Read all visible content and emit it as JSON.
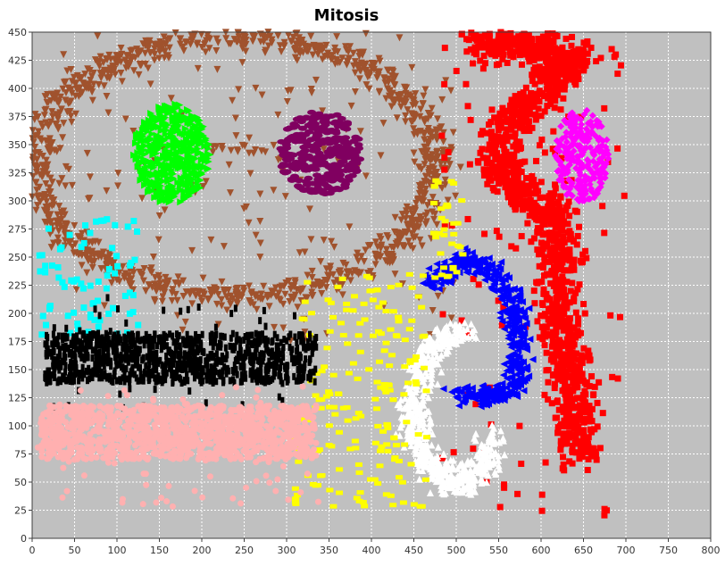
{
  "chart_data": {
    "type": "scatter",
    "title": "Mitosis",
    "xlabel": "",
    "ylabel": "",
    "xlim": [
      0,
      800
    ],
    "ylim": [
      0,
      450
    ],
    "xticks": [
      0,
      50,
      100,
      150,
      200,
      250,
      300,
      350,
      400,
      450,
      500,
      550,
      600,
      650,
      700,
      750,
      800
    ],
    "yticks": [
      0,
      25,
      50,
      75,
      100,
      125,
      150,
      175,
      200,
      225,
      250,
      275,
      300,
      325,
      350,
      375,
      400,
      425,
      450
    ],
    "grid": true,
    "legend": "none",
    "background_color": "#c0c0c0",
    "series": [
      {
        "color": "#a0522d",
        "marker": "triangle-down",
        "description": "large elliptical ring",
        "clusters": [
          {
            "shape": "ring",
            "cx": 240,
            "cy": 330,
            "rx": 235,
            "ry": 115,
            "thickness": 35,
            "count": 1100
          },
          {
            "shape": "scatter-fill",
            "x": [
              10,
              500
            ],
            "y": [
              170,
              450
            ],
            "count": 180
          },
          {
            "shape": "dash",
            "x": [
              200,
              290
            ],
            "y": [
              342,
              350
            ],
            "count": 16
          }
        ]
      },
      {
        "color": "#00ff00",
        "marker": "triangle-right",
        "description": "green blob inside ring",
        "clusters": [
          {
            "shape": "ellipse",
            "cx": 165,
            "cy": 342,
            "rx": 45,
            "ry": 45,
            "count": 520
          }
        ]
      },
      {
        "color": "#800060",
        "marker": "ellipse",
        "description": "purple blob inside ring",
        "clusters": [
          {
            "shape": "ellipse",
            "cx": 340,
            "cy": 342,
            "rx": 48,
            "ry": 38,
            "count": 300
          }
        ]
      },
      {
        "color": "#ff0000",
        "marker": "square",
        "description": "red hook shape",
        "clusters": [
          {
            "shape": "polyline",
            "points": [
              [
                520,
                440
              ],
              [
                580,
                440
              ],
              [
                640,
                425
              ],
              [
                600,
                395
              ],
              [
                560,
                370
              ],
              [
                550,
                330
              ],
              [
                580,
                305
              ],
              [
                615,
                285
              ],
              [
                625,
                245
              ],
              [
                620,
                200
              ],
              [
                630,
                165
              ],
              [
                640,
                120
              ],
              [
                645,
                85
              ],
              [
                650,
                70
              ]
            ],
            "width": 38,
            "count": 1400
          },
          {
            "shape": "scatter-fill",
            "x": [
              475,
              700
            ],
            "y": [
              20,
              445
            ],
            "count": 120
          }
        ]
      },
      {
        "color": "#ff00ff",
        "marker": "diamond",
        "description": "magenta blob",
        "clusters": [
          {
            "shape": "ellipse",
            "cx": 648,
            "cy": 340,
            "rx": 32,
            "ry": 42,
            "count": 260
          }
        ]
      },
      {
        "color": "#0000ff",
        "marker": "triangle-left",
        "description": "blue arc",
        "clusters": [
          {
            "shape": "polyline",
            "points": [
              [
                470,
                225
              ],
              [
                510,
                248
              ],
              [
                545,
                235
              ],
              [
                570,
                205
              ],
              [
                575,
                170
              ],
              [
                570,
                140
              ],
              [
                555,
                128
              ],
              [
                520,
                125
              ],
              [
                500,
                128
              ]
            ],
            "width": 22,
            "count": 520
          }
        ]
      },
      {
        "color": "#ffffff",
        "marker": "triangle-up",
        "description": "white arc",
        "clusters": [
          {
            "shape": "polyline",
            "points": [
              [
                510,
                185
              ],
              [
                480,
                175
              ],
              [
                460,
                150
              ],
              [
                448,
                115
              ],
              [
                455,
                85
              ],
              [
                470,
                65
              ],
              [
                490,
                50
              ],
              [
                515,
                50
              ],
              [
                535,
                70
              ],
              [
                545,
                95
              ]
            ],
            "width": 28,
            "count": 640
          }
        ]
      },
      {
        "color": "#ffff00",
        "marker": "rectangle",
        "description": "yellow scattered band",
        "clusters": [
          {
            "shape": "scatter-fill",
            "x": [
              310,
              470
            ],
            "y": [
              25,
              235
            ],
            "count": 190
          },
          {
            "shape": "scatter-fill",
            "x": [
              470,
              510
            ],
            "y": [
              230,
              320
            ],
            "count": 35
          }
        ]
      },
      {
        "color": "#00ffff",
        "marker": "square",
        "description": "cyan scatter",
        "clusters": [
          {
            "shape": "scatter-fill",
            "x": [
              8,
              125
            ],
            "y": [
              178,
              288
            ],
            "count": 75
          }
        ]
      },
      {
        "color": "#000000",
        "marker": "vertical-rect",
        "description": "black band",
        "clusters": [
          {
            "shape": "rect",
            "x": [
              15,
              335
            ],
            "y": [
              138,
              182
            ],
            "count": 950
          },
          {
            "shape": "scatter-fill",
            "x": [
              20,
              320
            ],
            "y": [
              115,
              215
            ],
            "count": 70
          }
        ]
      },
      {
        "color": "#ffb0b0",
        "marker": "circle",
        "description": "pink band",
        "clusters": [
          {
            "shape": "rect",
            "x": [
              10,
              335
            ],
            "y": [
              70,
              118
            ],
            "count": 1250
          },
          {
            "shape": "scatter-fill",
            "x": [
              5,
              340
            ],
            "y": [
              28,
              135
            ],
            "count": 90
          }
        ]
      }
    ]
  }
}
